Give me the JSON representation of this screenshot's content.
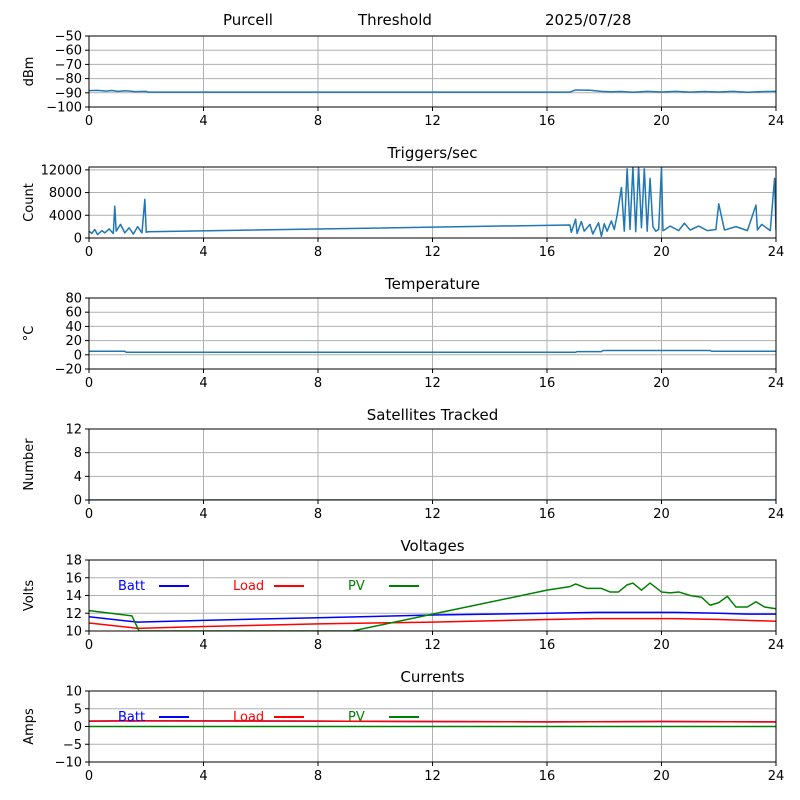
{
  "header": {
    "station": "Purcell",
    "mode": "Threshold",
    "date": "2025/07/28"
  },
  "colors": {
    "default_line": "#1f77b4",
    "batt": "#0000ff",
    "load": "#ff0000",
    "pv": "#008000",
    "grid": "#b0b0b0"
  },
  "chart_data": [
    {
      "type": "line",
      "title": "",
      "ylabel": "dBm",
      "xlim": [
        0,
        24
      ],
      "xticks": [
        0,
        4,
        8,
        12,
        16,
        20,
        24
      ],
      "ylim": [
        -100,
        -50
      ],
      "yticks": [
        -100,
        -90,
        -80,
        -70,
        -60,
        -50
      ],
      "grid": true,
      "series": [
        {
          "x": [
            0,
            0.3,
            0.6,
            0.8,
            1.0,
            1.3,
            1.6,
            2.0,
            2.05,
            16.8,
            17.0,
            17.5,
            17.9,
            18.2,
            18.6,
            19.0,
            19.5,
            20.0,
            20.5,
            21.0,
            21.5,
            22.0,
            22.5,
            23.0,
            23.5,
            24
          ],
          "y": [
            -88.5,
            -88.3,
            -88.8,
            -88.4,
            -89.0,
            -88.6,
            -89.2,
            -89.0,
            -89.5,
            -89.5,
            -88.0,
            -88.2,
            -89.0,
            -89.3,
            -89.1,
            -89.6,
            -89.0,
            -89.4,
            -89.0,
            -89.5,
            -89.1,
            -89.4,
            -89.0,
            -89.6,
            -89.2,
            -89.0
          ]
        }
      ]
    },
    {
      "type": "line",
      "title": "Triggers/sec",
      "ylabel": "Count",
      "xlim": [
        0,
        24
      ],
      "xticks": [
        0,
        4,
        8,
        12,
        16,
        20,
        24
      ],
      "ylim": [
        0,
        12500
      ],
      "yticks": [
        0,
        4000,
        8000,
        12000
      ],
      "grid": true,
      "series": [
        {
          "x": [
            0,
            0.1,
            0.2,
            0.3,
            0.45,
            0.55,
            0.7,
            0.85,
            0.9,
            0.95,
            1.1,
            1.25,
            1.4,
            1.55,
            1.7,
            1.85,
            1.95,
            2.0,
            2.05,
            16.8,
            16.85,
            17.0,
            17.05,
            17.2,
            17.3,
            17.5,
            17.6,
            17.8,
            17.9,
            18.0,
            18.1,
            18.25,
            18.35,
            18.45,
            18.6,
            18.7,
            18.8,
            18.9,
            19.0,
            19.1,
            19.2,
            19.3,
            19.4,
            19.5,
            19.6,
            19.7,
            19.8,
            19.9,
            20.0,
            20.05,
            20.1,
            20.3,
            20.6,
            20.8,
            21.0,
            21.3,
            21.6,
            21.9,
            22.0,
            22.2,
            22.6,
            23.0,
            23.3,
            23.35,
            23.5,
            23.8,
            23.95,
            24
          ],
          "y": [
            1200,
            800,
            1500,
            600,
            1300,
            900,
            1600,
            800,
            5600,
            1200,
            2400,
            900,
            1800,
            700,
            2000,
            900,
            6800,
            1000,
            1100,
            2300,
            1000,
            3300,
            800,
            2900,
            1200,
            2400,
            700,
            2700,
            300,
            2500,
            1200,
            3000,
            1500,
            4000,
            8900,
            1200,
            12200,
            1500,
            12500,
            1100,
            12500,
            1800,
            12200,
            1200,
            10500,
            2000,
            1200,
            1500,
            12400,
            1300,
            1400,
            2100,
            1300,
            2600,
            1400,
            2100,
            1300,
            1500,
            6000,
            1400,
            2000,
            1300,
            5800,
            1400,
            2400,
            1300,
            10500,
            1400
          ]
        }
      ]
    },
    {
      "type": "line",
      "title": "Temperature",
      "ylabel": "°C",
      "xlim": [
        0,
        24
      ],
      "xticks": [
        0,
        4,
        8,
        12,
        16,
        20,
        24
      ],
      "ylim": [
        -20,
        80
      ],
      "yticks": [
        -20,
        0,
        20,
        40,
        60,
        80
      ],
      "grid": true,
      "series": [
        {
          "x": [
            0,
            1.25,
            1.3,
            17.0,
            17.05,
            17.9,
            17.95,
            21.7,
            21.75,
            24
          ],
          "y": [
            5,
            5,
            3.5,
            3.5,
            4.5,
            4.5,
            6,
            6,
            5,
            5
          ]
        }
      ]
    },
    {
      "type": "line",
      "title": "Satellites Tracked",
      "ylabel": "Number",
      "xlim": [
        0,
        24
      ],
      "xticks": [
        0,
        4,
        8,
        12,
        16,
        20,
        24
      ],
      "ylim": [
        0,
        12
      ],
      "yticks": [
        0,
        4,
        8,
        12
      ],
      "grid": true,
      "series": [
        {
          "x": [
            0,
            24
          ],
          "y": [
            0,
            0
          ]
        }
      ]
    },
    {
      "type": "line",
      "title": "Voltages",
      "ylabel": "Volts",
      "xlim": [
        0,
        24
      ],
      "xticks": [
        0,
        4,
        8,
        12,
        16,
        20,
        24
      ],
      "ylim": [
        10,
        18
      ],
      "yticks": [
        10,
        12,
        14,
        16,
        18
      ],
      "grid": true,
      "legend": "top-left",
      "series": [
        {
          "name": "Batt",
          "color": "#0000ff",
          "x": [
            0,
            1.7,
            4,
            8,
            12,
            16,
            17.7,
            18.5,
            20.5,
            22,
            23,
            24
          ],
          "y": [
            11.6,
            11.0,
            11.2,
            11.5,
            11.8,
            12.0,
            12.1,
            12.1,
            12.1,
            12.0,
            11.9,
            11.9
          ]
        },
        {
          "name": "Load",
          "color": "#ff0000",
          "x": [
            0,
            1.7,
            4,
            8,
            12,
            16,
            17.7,
            18.5,
            20.5,
            22,
            23,
            24
          ],
          "y": [
            10.9,
            10.3,
            10.5,
            10.8,
            11.0,
            11.3,
            11.4,
            11.4,
            11.4,
            11.3,
            11.2,
            11.1
          ]
        },
        {
          "name": "PV",
          "color": "#008000",
          "x": [
            0,
            1.5,
            1.75,
            9.2,
            12,
            16,
            16.8,
            17.0,
            17.4,
            17.9,
            18.2,
            18.5,
            18.8,
            19.0,
            19.3,
            19.6,
            20.0,
            20.3,
            20.6,
            21.0,
            21.4,
            21.7,
            22.0,
            22.3,
            22.6,
            23.0,
            23.3,
            23.6,
            24
          ],
          "y": [
            12.3,
            11.7,
            10.0,
            10.0,
            11.9,
            14.6,
            15.0,
            15.3,
            14.8,
            14.8,
            14.4,
            14.4,
            15.2,
            15.4,
            14.6,
            15.4,
            14.4,
            14.3,
            14.4,
            14.0,
            13.8,
            12.9,
            13.2,
            13.9,
            12.7,
            12.7,
            13.3,
            12.7,
            12.5
          ]
        }
      ]
    },
    {
      "type": "line",
      "title": "Currents",
      "ylabel": "Amps",
      "xlim": [
        0,
        24
      ],
      "xticks": [
        0,
        4,
        8,
        12,
        16,
        20,
        24
      ],
      "ylim": [
        -10,
        10
      ],
      "yticks": [
        -10,
        -5,
        0,
        5,
        10
      ],
      "grid": true,
      "legend": "top-left",
      "series": [
        {
          "name": "Batt",
          "color": "#0000ff",
          "x": [
            0,
            2,
            8,
            16,
            20,
            24
          ],
          "y": [
            1.5,
            1.6,
            1.5,
            1.3,
            1.4,
            1.3
          ]
        },
        {
          "name": "Load",
          "color": "#ff0000",
          "x": [
            0,
            2,
            8,
            16,
            20,
            24
          ],
          "y": [
            1.5,
            1.6,
            1.5,
            1.3,
            1.4,
            1.3
          ]
        },
        {
          "name": "PV",
          "color": "#008000",
          "x": [
            0,
            24
          ],
          "y": [
            0,
            0
          ]
        }
      ]
    }
  ]
}
